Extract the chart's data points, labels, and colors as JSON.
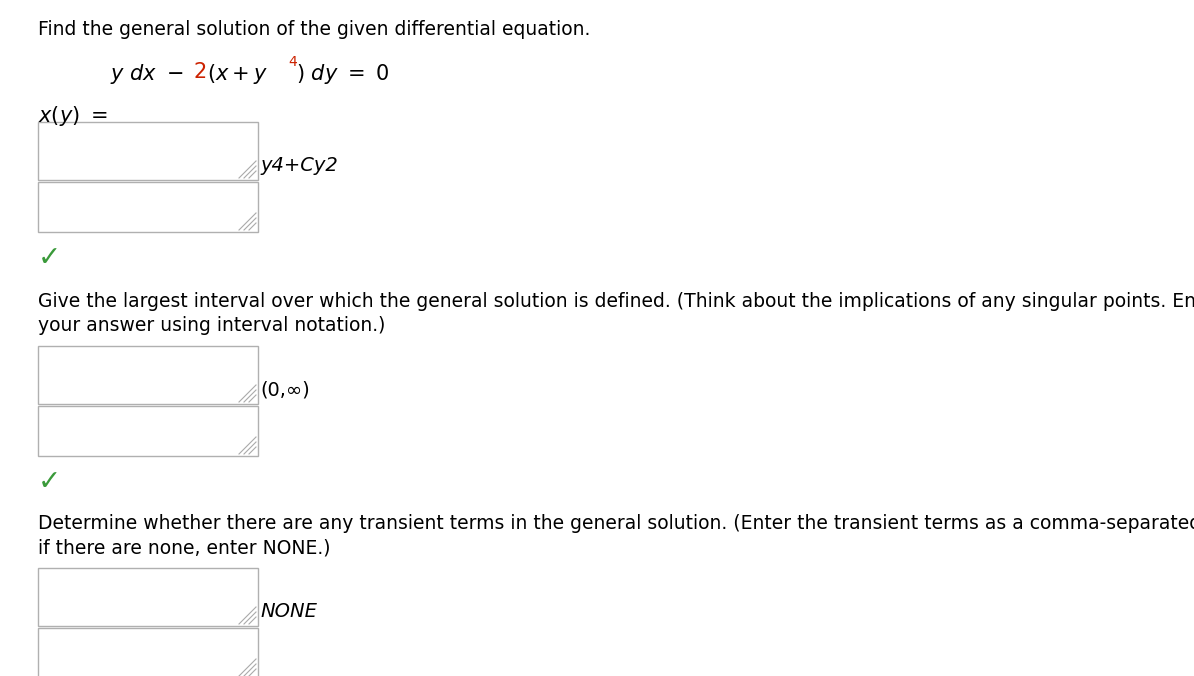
{
  "bg_color": "#ffffff",
  "title_text": "Find the general solution of the given differential equation.",
  "answer1": "y4+Cy2",
  "answer2": "(0,∞)",
  "answer3": "NONE",
  "section2_text1": "Give the largest interval over which the general solution is defined. (Think about the implications of any singular points. Enter",
  "section2_text2": "your answer using interval notation.)",
  "section3_text1": "Determine whether there are any transient terms in the general solution. (Enter the transient terms as a comma-separated list;",
  "section3_text2": "if there are none, enter NONE.)",
  "font_size_title": 13.5,
  "font_size_body": 13.5,
  "font_size_eq": 15,
  "font_size_answer": 14,
  "checkmark_color": "#3a9a3a",
  "box_edge_color": "#b0b0b0",
  "box_fill_color": "#ffffff",
  "red_color": "#cc2200"
}
